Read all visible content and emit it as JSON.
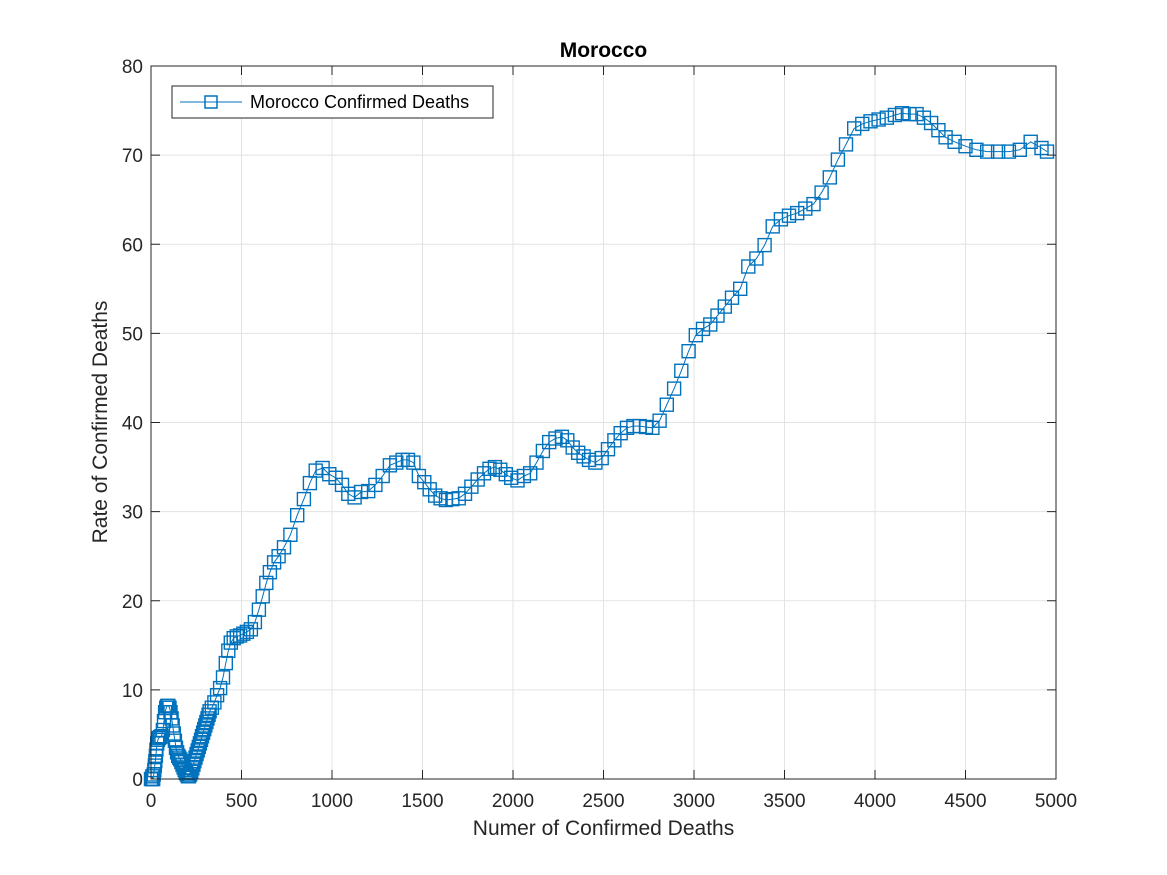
{
  "chart_data": {
    "type": "line",
    "title": "Morocco",
    "xlabel": "Numer of Confirmed Deaths",
    "ylabel": "Rate of Confirmed Deaths",
    "xlim": [
      0,
      5000
    ],
    "ylim": [
      0,
      80
    ],
    "xticks": [
      0,
      500,
      1000,
      1500,
      2000,
      2500,
      3000,
      3500,
      4000,
      4500,
      5000
    ],
    "yticks": [
      0,
      10,
      20,
      30,
      40,
      50,
      60,
      70,
      80
    ],
    "grid": true,
    "legend_position": "top-left",
    "marker": "square",
    "color": "#0072BD",
    "series": [
      {
        "name": "Morocco Confirmed Deaths",
        "points": [
          [
            0,
            0
          ],
          [
            3,
            0
          ],
          [
            6,
            0
          ],
          [
            8,
            0.3
          ],
          [
            10,
            0
          ],
          [
            12,
            0
          ],
          [
            15,
            0.5
          ],
          [
            18,
            1
          ],
          [
            21,
            1.5
          ],
          [
            24,
            2
          ],
          [
            27,
            2.6
          ],
          [
            30,
            3.3
          ],
          [
            34,
            4
          ],
          [
            38,
            4.4
          ],
          [
            43,
            4.6
          ],
          [
            50,
            4.7
          ],
          [
            58,
            4.8
          ],
          [
            66,
            5.5
          ],
          [
            72,
            6.5
          ],
          [
            78,
            7.5
          ],
          [
            84,
            8
          ],
          [
            90,
            8.2
          ],
          [
            96,
            8.2
          ],
          [
            102,
            8
          ],
          [
            108,
            7.5
          ],
          [
            114,
            6.8
          ],
          [
            120,
            6
          ],
          [
            126,
            5.1
          ],
          [
            132,
            4.3
          ],
          [
            138,
            3.5
          ],
          [
            144,
            3
          ],
          [
            150,
            2.6
          ],
          [
            156,
            2.4
          ],
          [
            162,
            2.2
          ],
          [
            168,
            1.9
          ],
          [
            174,
            1.6
          ],
          [
            180,
            1.3
          ],
          [
            186,
            1
          ],
          [
            192,
            0.7
          ],
          [
            198,
            0.5
          ],
          [
            204,
            0.3
          ],
          [
            210,
            0.3
          ],
          [
            216,
            0.5
          ],
          [
            222,
            0.8
          ],
          [
            228,
            1.2
          ],
          [
            234,
            1.6
          ],
          [
            240,
            2
          ],
          [
            246,
            2.4
          ],
          [
            252,
            2.8
          ],
          [
            258,
            3.2
          ],
          [
            264,
            3.6
          ],
          [
            270,
            4
          ],
          [
            276,
            4.4
          ],
          [
            282,
            4.8
          ],
          [
            288,
            5.2
          ],
          [
            294,
            5.6
          ],
          [
            300,
            6
          ],
          [
            306,
            6.4
          ],
          [
            312,
            6.8
          ],
          [
            318,
            7.2
          ],
          [
            324,
            7.6
          ],
          [
            336,
            8
          ],
          [
            350,
            8.6
          ],
          [
            365,
            9.4
          ],
          [
            382,
            10.2
          ],
          [
            398,
            11.4
          ],
          [
            413,
            13
          ],
          [
            427,
            14.4
          ],
          [
            441,
            15.3
          ],
          [
            457,
            15.8
          ],
          [
            474,
            16
          ],
          [
            492,
            16.1
          ],
          [
            510,
            16.3
          ],
          [
            530,
            16.5
          ],
          [
            552,
            16.8
          ],
          [
            574,
            17.6
          ],
          [
            596,
            19
          ],
          [
            617,
            20.5
          ],
          [
            637,
            22
          ],
          [
            657,
            23.2
          ],
          [
            680,
            24.3
          ],
          [
            705,
            25
          ],
          [
            735,
            26
          ],
          [
            770,
            27.4
          ],
          [
            808,
            29.6
          ],
          [
            845,
            31.4
          ],
          [
            878,
            33.2
          ],
          [
            910,
            34.6
          ],
          [
            948,
            34.9
          ],
          [
            985,
            34.2
          ],
          [
            1020,
            33.8
          ],
          [
            1055,
            33
          ],
          [
            1090,
            32
          ],
          [
            1125,
            31.6
          ],
          [
            1160,
            32.2
          ],
          [
            1200,
            32.3
          ],
          [
            1240,
            33
          ],
          [
            1280,
            34
          ],
          [
            1320,
            35.2
          ],
          [
            1355,
            35.5
          ],
          [
            1390,
            35.8
          ],
          [
            1420,
            35.8
          ],
          [
            1450,
            35.5
          ],
          [
            1480,
            34
          ],
          [
            1510,
            33.3
          ],
          [
            1540,
            32.5
          ],
          [
            1570,
            31.8
          ],
          [
            1600,
            31.5
          ],
          [
            1630,
            31.3
          ],
          [
            1665,
            31.4
          ],
          [
            1700,
            31.5
          ],
          [
            1735,
            32
          ],
          [
            1770,
            32.8
          ],
          [
            1805,
            33.6
          ],
          [
            1840,
            34.3
          ],
          [
            1870,
            34.8
          ],
          [
            1900,
            35
          ],
          [
            1930,
            34.7
          ],
          [
            1960,
            34.2
          ],
          [
            1990,
            33.8
          ],
          [
            2025,
            33.5
          ],
          [
            2060,
            34
          ],
          [
            2095,
            34.3
          ],
          [
            2130,
            35.5
          ],
          [
            2165,
            36.8
          ],
          [
            2200,
            37.8
          ],
          [
            2235,
            38.2
          ],
          [
            2270,
            38.4
          ],
          [
            2300,
            38
          ],
          [
            2330,
            37.2
          ],
          [
            2360,
            36.6
          ],
          [
            2390,
            36.2
          ],
          [
            2420,
            35.8
          ],
          [
            2455,
            35.5
          ],
          [
            2490,
            36
          ],
          [
            2525,
            37
          ],
          [
            2560,
            38
          ],
          [
            2595,
            38.8
          ],
          [
            2630,
            39.4
          ],
          [
            2665,
            39.6
          ],
          [
            2700,
            39.6
          ],
          [
            2735,
            39.5
          ],
          [
            2770,
            39.4
          ],
          [
            2810,
            40.2
          ],
          [
            2850,
            42
          ],
          [
            2890,
            43.8
          ],
          [
            2930,
            45.8
          ],
          [
            2970,
            48
          ],
          [
            3010,
            49.8
          ],
          [
            3050,
            50.5
          ],
          [
            3090,
            51
          ],
          [
            3130,
            52
          ],
          [
            3170,
            53
          ],
          [
            3210,
            54
          ],
          [
            3255,
            55
          ],
          [
            3300,
            57.5
          ],
          [
            3345,
            58.4
          ],
          [
            3390,
            59.9
          ],
          [
            3435,
            62
          ],
          [
            3480,
            62.8
          ],
          [
            3525,
            63.2
          ],
          [
            3570,
            63.5
          ],
          [
            3615,
            64
          ],
          [
            3660,
            64.5
          ],
          [
            3705,
            65.8
          ],
          [
            3750,
            67.5
          ],
          [
            3795,
            69.5
          ],
          [
            3840,
            71.2
          ],
          [
            3885,
            73
          ],
          [
            3930,
            73.5
          ],
          [
            3975,
            73.8
          ],
          [
            4020,
            74
          ],
          [
            4065,
            74.2
          ],
          [
            4110,
            74.5
          ],
          [
            4150,
            74.7
          ],
          [
            4190,
            74.6
          ],
          [
            4230,
            74.6
          ],
          [
            4270,
            74.2
          ],
          [
            4310,
            73.6
          ],
          [
            4350,
            72.8
          ],
          [
            4390,
            72
          ],
          [
            4440,
            71.5
          ],
          [
            4500,
            71
          ],
          [
            4560,
            70.6
          ],
          [
            4620,
            70.4
          ],
          [
            4680,
            70.4
          ],
          [
            4740,
            70.4
          ],
          [
            4800,
            70.6
          ],
          [
            4860,
            71.5
          ],
          [
            4920,
            70.8
          ],
          [
            4950,
            70.4
          ]
        ]
      }
    ]
  }
}
